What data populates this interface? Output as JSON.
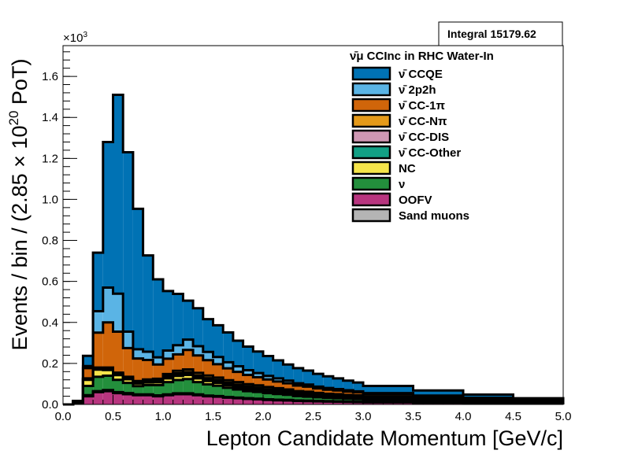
{
  "chart_data": {
    "type": "stacked-histogram",
    "xlabel": "Lepton Candidate Momentum [GeV/c]",
    "ylabel": "Events / bin / (2.85 × 10",
    "ylabel_exp": "20",
    "ylabel_tail": " PoT)",
    "y_multiplier": "×10",
    "y_multiplier_exp": "3",
    "xlim": [
      0,
      5
    ],
    "ylim": [
      0,
      1.75
    ],
    "grid": false,
    "legend_position": "top-right",
    "legend_title": "ν̄μ CCInc in RHC Water-In",
    "stat_box": "Integral 15179.62",
    "x_ticks": [
      "0.0",
      "0.5",
      "1.0",
      "1.5",
      "2.0",
      "2.5",
      "3.0",
      "3.5",
      "4.0",
      "4.5",
      "5.0"
    ],
    "y_ticks": [
      "0.0",
      "0.2",
      "0.4",
      "0.6",
      "0.8",
      "1.0",
      "1.2",
      "1.4",
      "1.6"
    ],
    "bin_edges": [
      0,
      0.1,
      0.2,
      0.3,
      0.4,
      0.5,
      0.6,
      0.7,
      0.8,
      0.9,
      1.0,
      1.1,
      1.2,
      1.3,
      1.4,
      1.5,
      1.6,
      1.7,
      1.8,
      1.9,
      2.0,
      2.1,
      2.2,
      2.3,
      2.4,
      2.5,
      2.6,
      2.7,
      2.8,
      2.9,
      3.0,
      3.5,
      4.0,
      4.5,
      5.0
    ],
    "series": [
      {
        "name": "OOFV",
        "color": "#b8357f",
        "values": [
          0.0,
          0.005,
          0.04,
          0.06,
          0.065,
          0.055,
          0.05,
          0.045,
          0.045,
          0.04,
          0.045,
          0.05,
          0.05,
          0.045,
          0.04,
          0.038,
          0.033,
          0.03,
          0.027,
          0.025,
          0.022,
          0.02,
          0.019,
          0.017,
          0.016,
          0.015,
          0.014,
          0.013,
          0.012,
          0.011,
          0.01,
          0.008,
          0.006,
          0.004
        ]
      },
      {
        "name": "Sand muons",
        "color": "#b4b4b4",
        "values": [
          0.0,
          0.0,
          0.005,
          0.005,
          0.005,
          0.005,
          0.005,
          0.004,
          0.004,
          0.004,
          0.004,
          0.004,
          0.004,
          0.004,
          0.003,
          0.003,
          0.003,
          0.003,
          0.003,
          0.003,
          0.003,
          0.003,
          0.003,
          0.002,
          0.002,
          0.002,
          0.002,
          0.002,
          0.002,
          0.002,
          0.002,
          0.002,
          0.001,
          0.001
        ]
      },
      {
        "name": "ν",
        "color": "#238f3c",
        "values": [
          0.0,
          0.005,
          0.045,
          0.07,
          0.07,
          0.06,
          0.05,
          0.04,
          0.045,
          0.05,
          0.06,
          0.065,
          0.07,
          0.06,
          0.055,
          0.05,
          0.045,
          0.04,
          0.035,
          0.033,
          0.03,
          0.028,
          0.025,
          0.022,
          0.02,
          0.018,
          0.016,
          0.015,
          0.014,
          0.013,
          0.011,
          0.009,
          0.007,
          0.005
        ]
      },
      {
        "name": "NC",
        "color": "#f5e44a",
        "values": [
          0.0,
          0.003,
          0.03,
          0.035,
          0.028,
          0.023,
          0.018,
          0.013,
          0.013,
          0.014,
          0.018,
          0.02,
          0.02,
          0.018,
          0.016,
          0.014,
          0.012,
          0.011,
          0.01,
          0.009,
          0.008,
          0.007,
          0.006,
          0.005,
          0.005,
          0.004,
          0.004,
          0.004,
          0.003,
          0.003,
          0.003,
          0.002,
          0.002,
          0.001
        ]
      },
      {
        "name": "ν̄ CC-Other",
        "color": "#12a085",
        "values": [
          0.0,
          0.0,
          0.002,
          0.003,
          0.003,
          0.003,
          0.003,
          0.003,
          0.004,
          0.004,
          0.005,
          0.006,
          0.006,
          0.006,
          0.006,
          0.006,
          0.005,
          0.005,
          0.005,
          0.005,
          0.004,
          0.004,
          0.004,
          0.004,
          0.004,
          0.003,
          0.003,
          0.003,
          0.003,
          0.003,
          0.003,
          0.002,
          0.002,
          0.001
        ]
      },
      {
        "name": "ν̄ CC-DIS",
        "color": "#cf97b3",
        "values": [
          0.0,
          0.0,
          0.002,
          0.003,
          0.003,
          0.003,
          0.003,
          0.003,
          0.004,
          0.005,
          0.006,
          0.007,
          0.008,
          0.008,
          0.008,
          0.008,
          0.008,
          0.008,
          0.008,
          0.007,
          0.007,
          0.007,
          0.006,
          0.006,
          0.006,
          0.006,
          0.005,
          0.005,
          0.005,
          0.005,
          0.005,
          0.004,
          0.003,
          0.002
        ]
      },
      {
        "name": "ν̄ CC-Nπ",
        "color": "#e59a1a",
        "values": [
          0.0,
          0.0,
          0.003,
          0.004,
          0.006,
          0.006,
          0.006,
          0.006,
          0.007,
          0.008,
          0.01,
          0.012,
          0.013,
          0.013,
          0.013,
          0.012,
          0.012,
          0.012,
          0.011,
          0.011,
          0.011,
          0.01,
          0.01,
          0.009,
          0.009,
          0.008,
          0.008,
          0.008,
          0.007,
          0.007,
          0.006,
          0.005,
          0.004,
          0.003
        ]
      },
      {
        "name": "ν̄ CC-1π",
        "color": "#d0650a",
        "values": [
          0.0,
          0.004,
          0.05,
          0.17,
          0.22,
          0.2,
          0.14,
          0.11,
          0.095,
          0.07,
          0.075,
          0.08,
          0.095,
          0.085,
          0.075,
          0.065,
          0.058,
          0.05,
          0.045,
          0.04,
          0.037,
          0.033,
          0.03,
          0.027,
          0.025,
          0.022,
          0.02,
          0.018,
          0.017,
          0.015,
          0.011,
          0.008,
          0.005,
          0.003
        ]
      },
      {
        "name": "ν̄ 2p2h",
        "color": "#5ab4e5",
        "values": [
          0.0,
          0.0,
          0.01,
          0.105,
          0.17,
          0.185,
          0.08,
          0.045,
          0.04,
          0.035,
          0.04,
          0.045,
          0.05,
          0.045,
          0.04,
          0.035,
          0.03,
          0.027,
          0.023,
          0.02,
          0.017,
          0.015,
          0.013,
          0.011,
          0.01,
          0.009,
          0.008,
          0.007,
          0.006,
          0.005,
          0.004,
          0.003,
          0.002,
          0.001
        ]
      },
      {
        "name": "ν̄ CCQE",
        "color": "#0072b4",
        "values": [
          0.0,
          0.0,
          0.05,
          0.285,
          0.71,
          0.97,
          0.875,
          0.685,
          0.47,
          0.38,
          0.29,
          0.25,
          0.19,
          0.185,
          0.16,
          0.155,
          0.145,
          0.125,
          0.115,
          0.105,
          0.097,
          0.088,
          0.079,
          0.074,
          0.068,
          0.062,
          0.057,
          0.052,
          0.047,
          0.043,
          0.035,
          0.025,
          0.016,
          0.009
        ]
      }
    ]
  }
}
